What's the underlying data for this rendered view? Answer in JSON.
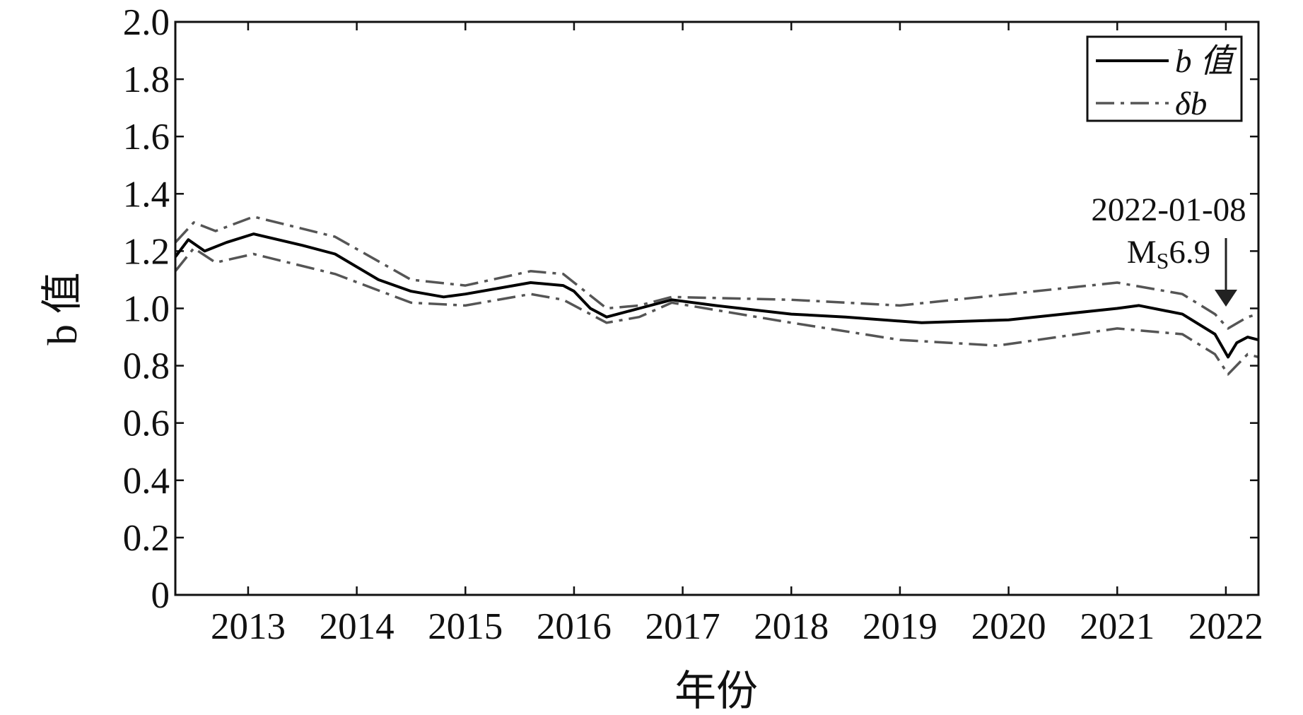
{
  "chart_data": {
    "type": "line",
    "xlabel": "年份",
    "ylabel": "b 值",
    "xlim": [
      2012.33,
      2022.3
    ],
    "ylim": [
      0,
      2
    ],
    "xticks": [
      2013,
      2014,
      2015,
      2016,
      2017,
      2018,
      2019,
      2020,
      2021,
      2022
    ],
    "yticks": [
      0,
      0.2,
      0.4,
      0.6,
      0.8,
      {
        "value": 1,
        "label": "1.0"
      },
      1.2,
      1.4,
      1.6,
      1.8,
      {
        "value": 2,
        "label": "2.0"
      }
    ],
    "legend": "upper right",
    "series": [
      {
        "name": "b 值",
        "color": "#000000",
        "style": "solid",
        "x": [
          2012.33,
          2012.45,
          2012.6,
          2012.8,
          2013.05,
          2013.5,
          2013.8,
          2014.2,
          2014.5,
          2014.8,
          2015.0,
          2015.3,
          2015.6,
          2015.9,
          2016.0,
          2016.15,
          2016.3,
          2016.6,
          2016.9,
          2017.3,
          2018.0,
          2018.5,
          2019.2,
          2020.0,
          2020.5,
          2021.0,
          2021.2,
          2021.6,
          2021.9,
          2022.02,
          2022.1,
          2022.2,
          2022.3
        ],
        "values": [
          1.18,
          1.24,
          1.2,
          1.23,
          1.26,
          1.22,
          1.19,
          1.1,
          1.06,
          1.04,
          1.05,
          1.07,
          1.09,
          1.08,
          1.06,
          1.0,
          0.97,
          1.0,
          1.03,
          1.01,
          0.98,
          0.97,
          0.95,
          0.96,
          0.98,
          1.0,
          1.01,
          0.98,
          0.91,
          0.83,
          0.88,
          0.9,
          0.89
        ]
      },
      {
        "name": "δb",
        "color": "#555555",
        "style": "dashdot",
        "x": [
          2012.33,
          2012.5,
          2012.7,
          2013.05,
          2013.8,
          2014.5,
          2015.0,
          2015.6,
          2015.9,
          2016.3,
          2016.6,
          2016.9,
          2018.0,
          2019.0,
          2020.0,
          2021.0,
          2021.6,
          2021.9,
          2022.02,
          2022.2,
          2022.3
        ],
        "values": [
          1.23,
          1.3,
          1.27,
          1.32,
          1.25,
          1.1,
          1.08,
          1.13,
          1.12,
          1.0,
          1.01,
          1.04,
          1.03,
          1.01,
          1.05,
          1.09,
          1.05,
          0.98,
          0.93,
          0.97,
          0.98
        ]
      },
      {
        "color": "#555555",
        "style": "dashdot",
        "x": [
          2012.33,
          2012.5,
          2012.7,
          2013.05,
          2013.8,
          2014.5,
          2015.0,
          2015.6,
          2015.9,
          2016.3,
          2016.6,
          2016.9,
          2018.0,
          2019.0,
          2019.9,
          2021.0,
          2021.6,
          2021.9,
          2022.02,
          2022.2,
          2022.3
        ],
        "values": [
          1.13,
          1.21,
          1.16,
          1.19,
          1.12,
          1.02,
          1.01,
          1.05,
          1.03,
          0.95,
          0.97,
          1.02,
          0.95,
          0.89,
          0.87,
          0.93,
          0.91,
          0.84,
          0.77,
          0.84,
          0.83
        ]
      }
    ],
    "annotation": {
      "date": "2022-01-08",
      "mag_prefix": "M",
      "mag_sub": "S",
      "mag_value": "6.9"
    }
  }
}
